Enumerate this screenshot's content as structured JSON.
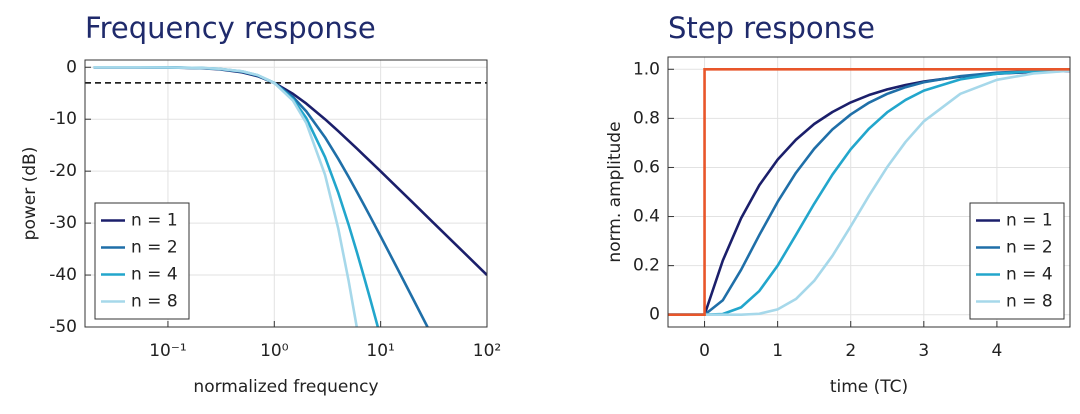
{
  "chart_data": [
    {
      "type": "line",
      "title": "Frequency response",
      "x_label": "normalized frequency",
      "y_label": "power (dB)",
      "xscale": "log",
      "grid": true,
      "legend": "lower left",
      "xlim": [
        0.0166,
        100
      ],
      "xticks": [
        {
          "value": 0.1,
          "label": "10⁻¹"
        },
        {
          "value": 1,
          "label": "10⁰"
        },
        {
          "value": 10,
          "label": "10¹"
        },
        {
          "value": 100,
          "label": "10²"
        }
      ],
      "ylim": [
        -50,
        1.4
      ],
      "yticks": [
        0,
        -10,
        -20,
        -30,
        -40,
        -50
      ],
      "reference_line": {
        "y": -3,
        "style": "dashed",
        "color": "#000000"
      },
      "x": [
        0.02,
        0.05,
        0.1,
        0.2,
        0.3,
        0.5,
        0.7,
        1,
        1.5,
        2,
        3,
        4,
        5,
        6,
        7,
        8,
        10,
        15,
        20,
        30,
        50,
        100
      ],
      "series": [
        {
          "name": "n = 1",
          "color": "#1b1f6b",
          "values": [
            0,
            -0.01,
            -0.04,
            -0.17,
            -0.37,
            -0.97,
            -1.72,
            -3.01,
            -5.12,
            -6.99,
            -10,
            -12.3,
            -14.15,
            -15.68,
            -16.99,
            -18.13,
            -20.04,
            -23.54,
            -26.03,
            -29.55,
            -33.98,
            -40
          ]
        },
        {
          "name": "n = 2",
          "color": "#1f6fa8",
          "values": [
            0,
            -0.01,
            -0.04,
            -0.14,
            -0.32,
            -0.86,
            -1.6,
            -3.01,
            -5.72,
            -8.49,
            -13.49,
            -17.65,
            -21.1,
            -24.03,
            -26.57,
            -28.79,
            -32.55,
            -39.48,
            -44.44,
            -51.45,
            null,
            null
          ]
        },
        {
          "name": "n = 4",
          "color": "#22a6cc",
          "values": [
            0,
            -0.01,
            -0.03,
            -0.13,
            -0.29,
            -0.8,
            -1.54,
            -3.01,
            -6.16,
            -9.79,
            -17.28,
            -24.2,
            -30.32,
            -35.71,
            -40.47,
            -44.7,
            -51.97,
            null,
            null,
            null,
            null,
            null
          ]
        },
        {
          "name": "n = 8",
          "color": "#a6d8ea",
          "values": [
            0,
            -0.01,
            -0.03,
            -0.13,
            -0.28,
            -0.78,
            -1.51,
            -3.01,
            -6.44,
            -10.74,
            -20.71,
            -31.11,
            -41.11,
            -50.33,
            null,
            null,
            null,
            null,
            null,
            null,
            null,
            null
          ]
        }
      ]
    },
    {
      "type": "line",
      "title": "Step response",
      "x_label": "time (TC)",
      "y_label": "norm. amplitude",
      "xscale": "linear",
      "grid": true,
      "legend": "lower right",
      "xlim": [
        -0.5,
        5
      ],
      "xticks": [
        0,
        1,
        2,
        3,
        4
      ],
      "ylim": [
        -0.05,
        1.05
      ],
      "yticks": [
        0,
        0.2,
        0.4,
        0.6,
        0.8,
        {
          "value": 1,
          "label": "1.0"
        }
      ],
      "input": {
        "color": "#e8562a",
        "x": [
          -0.5,
          0,
          0,
          5
        ],
        "values": [
          0,
          0,
          1,
          1
        ]
      },
      "x": [
        -0.5,
        0,
        0.25,
        0.5,
        0.75,
        1,
        1.25,
        1.5,
        1.75,
        2,
        2.25,
        2.5,
        2.75,
        3,
        3.5,
        4,
        4.5,
        5
      ],
      "series": [
        {
          "name": "n = 1",
          "color": "#1b1f6b",
          "values": [
            0,
            0,
            0.221,
            0.393,
            0.528,
            0.632,
            0.713,
            0.777,
            0.826,
            0.865,
            0.895,
            0.918,
            0.936,
            0.95,
            0.97,
            0.982,
            0.989,
            0.993
          ]
        },
        {
          "name": "n = 2",
          "color": "#1f6fa8",
          "values": [
            0,
            0,
            0.059,
            0.183,
            0.325,
            0.46,
            0.578,
            0.676,
            0.755,
            0.816,
            0.864,
            0.9,
            0.927,
            0.947,
            0.972,
            0.986,
            0.993,
            0.996
          ]
        },
        {
          "name": "n = 4",
          "color": "#22a6cc",
          "values": [
            0,
            0,
            0.003,
            0.03,
            0.097,
            0.2,
            0.325,
            0.452,
            0.571,
            0.674,
            0.758,
            0.825,
            0.875,
            0.913,
            0.959,
            0.982,
            0.992,
            0.997
          ]
        },
        {
          "name": "n = 8",
          "color": "#a6d8ea",
          "values": [
            0,
            0,
            0,
            0,
            0.004,
            0.022,
            0.064,
            0.138,
            0.24,
            0.36,
            0.485,
            0.602,
            0.704,
            0.788,
            0.9,
            0.957,
            0.983,
            0.994
          ]
        }
      ]
    }
  ]
}
